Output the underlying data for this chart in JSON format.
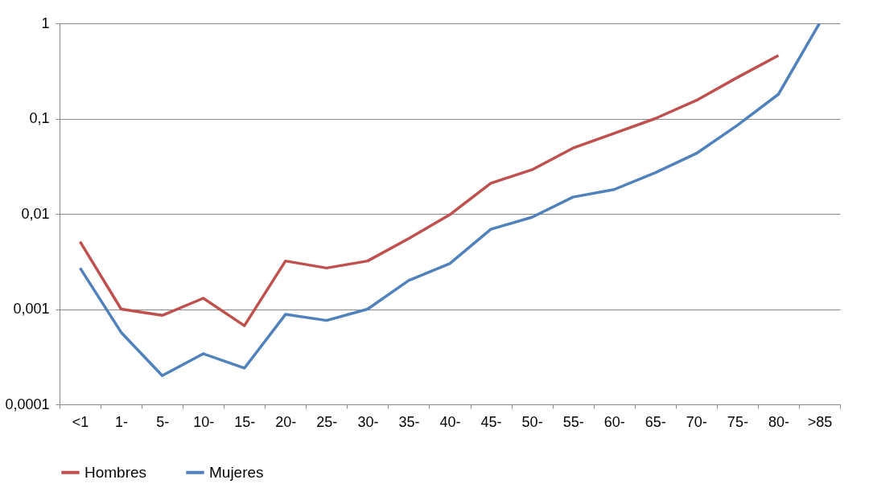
{
  "chart_data": {
    "type": "line",
    "categories": [
      "<1",
      "1-",
      "5-",
      "10-",
      "15-",
      "20-",
      "25-",
      "30-",
      "35-",
      "40-",
      "45-",
      "50-",
      "55-",
      "60-",
      "65-",
      "70-",
      "75-",
      "80-",
      ">85"
    ],
    "series": [
      {
        "name": "Hombres",
        "color": "#c0504d",
        "values": [
          0.0051,
          0.001,
          0.00086,
          0.0013,
          0.00067,
          0.0032,
          0.0027,
          0.0032,
          0.0055,
          0.0098,
          0.021,
          0.029,
          0.049,
          0.07,
          0.1,
          0.155,
          0.27,
          0.46,
          null
        ]
      },
      {
        "name": "Mujeres",
        "color": "#4f81bd",
        "values": [
          0.0027,
          0.00057,
          0.0002,
          0.00034,
          0.00024,
          0.00088,
          0.00076,
          0.001,
          0.002,
          0.003,
          0.0069,
          0.0092,
          0.015,
          0.018,
          0.027,
          0.043,
          0.085,
          0.18,
          1
        ]
      }
    ],
    "log": true,
    "ylim": [
      0.0001,
      1
    ],
    "yticks": [
      {
        "value": 0.0001,
        "label": "0,0001"
      },
      {
        "value": 0.001,
        "label": "0,001"
      },
      {
        "value": 0.01,
        "label": "0,01"
      },
      {
        "value": 0.1,
        "label": "0,1"
      },
      1
    ],
    "grid": "y",
    "legend": "bottom"
  }
}
